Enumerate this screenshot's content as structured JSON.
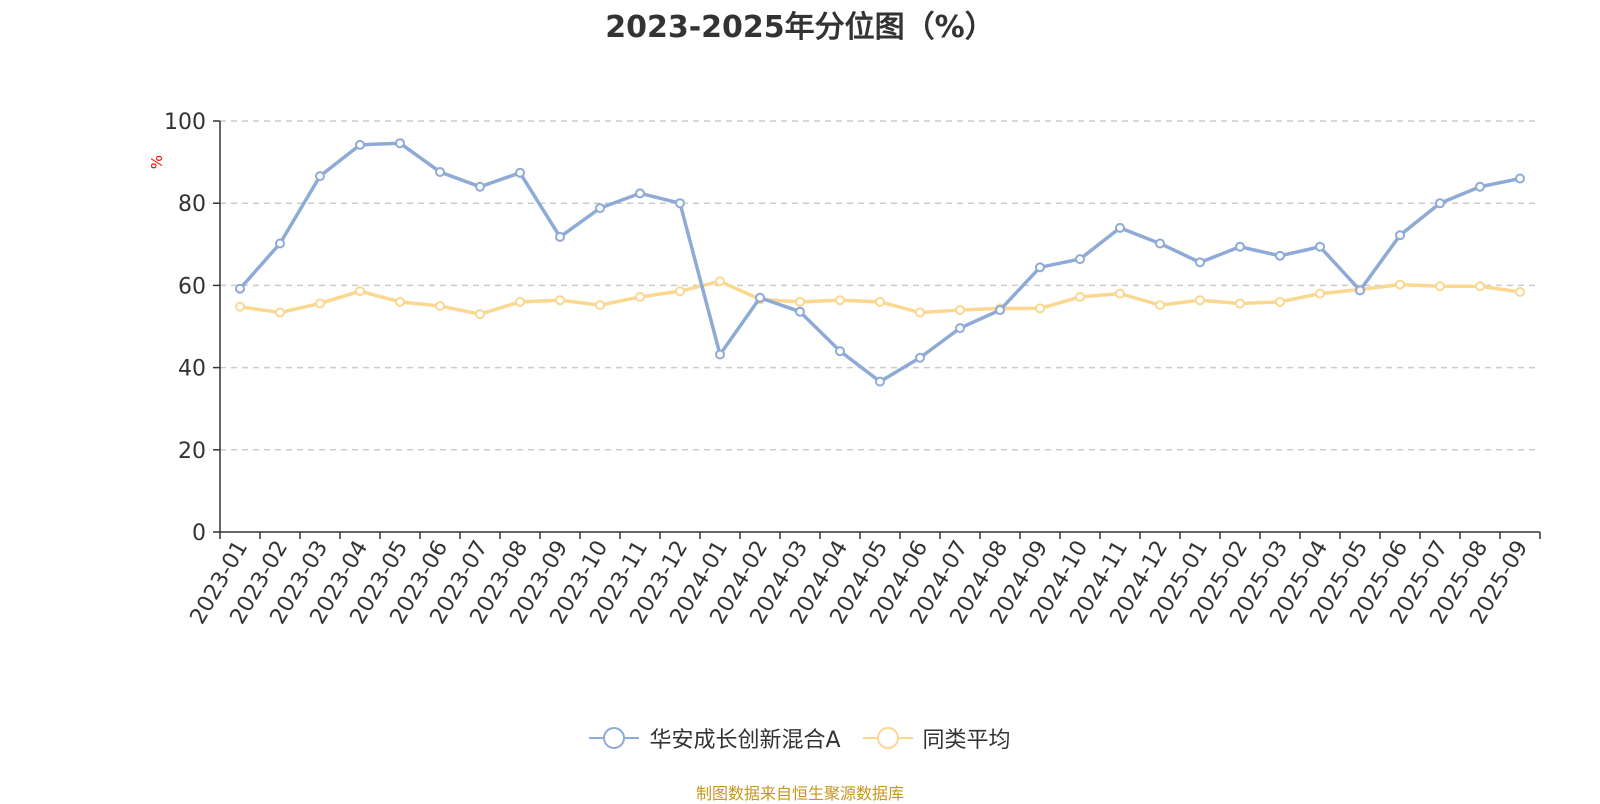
{
  "chart_data": {
    "type": "line",
    "title": "2023-2025年分位图（%）",
    "ylabel": "%",
    "xlabel": "",
    "ylim": [
      0,
      100
    ],
    "yticks": [
      0,
      20,
      40,
      60,
      80,
      100
    ],
    "grid": true,
    "legend_position": "bottom",
    "categories": [
      "2023-01",
      "2023-02",
      "2023-03",
      "2023-04",
      "2023-05",
      "2023-06",
      "2023-07",
      "2023-08",
      "2023-09",
      "2023-10",
      "2023-11",
      "2023-12",
      "2024-01",
      "2024-02",
      "2024-03",
      "2024-04",
      "2024-05",
      "2024-06",
      "2024-07",
      "2024-08",
      "2024-09",
      "2024-10",
      "2024-11",
      "2024-12",
      "2025-01",
      "2025-02",
      "2025-03",
      "2025-04",
      "2025-05",
      "2025-06",
      "2025-07",
      "2025-08",
      "2025-09"
    ],
    "series": [
      {
        "name": "华安成长创新混合A",
        "color": "#8eaad6",
        "values": [
          59.2,
          70.2,
          86.6,
          94.2,
          94.6,
          87.6,
          84.0,
          87.4,
          71.8,
          78.8,
          82.4,
          80.0,
          43.2,
          57.0,
          53.6,
          44.0,
          36.6,
          42.4,
          49.6,
          54.0,
          64.4,
          66.4,
          74.0,
          70.2,
          65.6,
          69.4,
          67.2,
          69.4,
          58.8,
          72.2,
          80.0,
          84.0,
          86.0
        ]
      },
      {
        "name": "同类平均",
        "color": "#fad890",
        "values": [
          54.8,
          53.4,
          55.6,
          58.6,
          56.0,
          55.0,
          53.0,
          56.0,
          56.4,
          55.2,
          57.2,
          58.6,
          61.0,
          56.6,
          56.0,
          56.4,
          56.0,
          53.4,
          54.0,
          54.4,
          54.4,
          57.2,
          58.0,
          55.2,
          56.4,
          55.6,
          56.0,
          58.0,
          59.0,
          60.2,
          59.8,
          59.8,
          58.4
        ]
      }
    ],
    "source": "制图数据来自恒生聚源数据库"
  },
  "colors": {
    "axis": "#333333",
    "grid": "#cccccc",
    "ylabel": "#ff0000",
    "source": "#c8961e"
  }
}
